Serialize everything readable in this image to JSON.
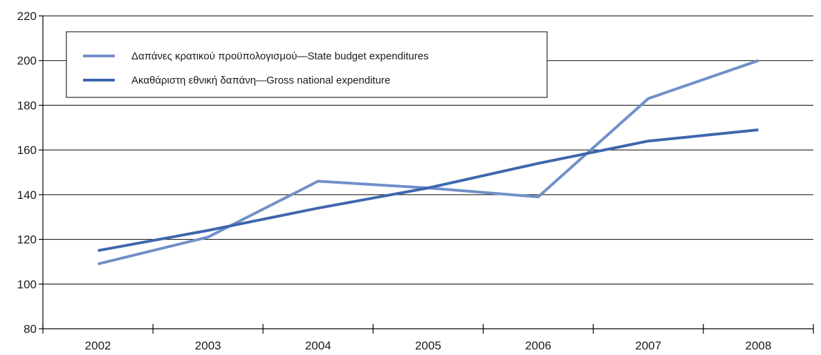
{
  "chart_data": {
    "type": "line",
    "title": "",
    "xlabel": "",
    "ylabel": "",
    "categories": [
      "2002",
      "2003",
      "2004",
      "2005",
      "2006",
      "2007",
      "2008"
    ],
    "ylim": [
      80,
      220
    ],
    "yticks": [
      "80",
      "100",
      "120",
      "140",
      "160",
      "180",
      "200",
      "220"
    ],
    "grid": true,
    "legend_position": "top-left",
    "series": [
      {
        "name": "Δαπάνες κρατικού προϋπολογισμού—State budget expenditures",
        "color": "#7090c8",
        "values": [
          109,
          121,
          146,
          143,
          139,
          183,
          200
        ]
      },
      {
        "name": "Ακαθάριστη εθνική δαπάνη—Gross national expenditure",
        "color": "#3f66ae",
        "values": [
          115,
          124,
          134,
          143,
          154,
          164,
          169
        ]
      }
    ]
  }
}
